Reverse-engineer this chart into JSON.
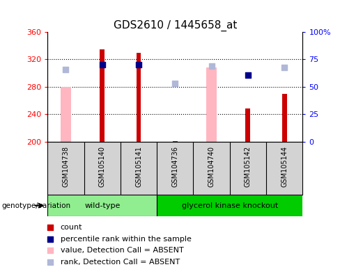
{
  "title": "GDS2610 / 1445658_at",
  "samples": [
    "GSM104738",
    "GSM105140",
    "GSM105141",
    "GSM104736",
    "GSM104740",
    "GSM105142",
    "GSM105144"
  ],
  "count_values": [
    null,
    335,
    330,
    201,
    null,
    248,
    270
  ],
  "count_color": "#cc0000",
  "pink_bar_values": [
    280,
    null,
    null,
    null,
    308,
    null,
    null
  ],
  "pink_bar_color": "#ffb6c1",
  "blue_square_values": [
    305,
    312,
    312,
    285,
    310,
    297,
    308
  ],
  "blue_square_is_dark": [
    false,
    true,
    true,
    false,
    false,
    true,
    false
  ],
  "dark_blue": "#00008b",
  "light_blue": "#b0b8d8",
  "ylim_left": [
    200,
    360
  ],
  "ylim_right": [
    0,
    100
  ],
  "yticks_left": [
    200,
    240,
    280,
    320,
    360
  ],
  "yticks_right": [
    0,
    25,
    50,
    75,
    100
  ],
  "ytick_labels_right": [
    "0",
    "25",
    "50",
    "75",
    "100%"
  ],
  "grid_lines": [
    240,
    280,
    320
  ],
  "plot_bg": "#ffffff",
  "sample_bg": "#d3d3d3",
  "wt_color": "#90ee90",
  "gk_color": "#00cc00",
  "genotype_label": "genotype/variation",
  "title_fontsize": 11,
  "tick_fontsize": 8,
  "sample_fontsize": 7,
  "legend_fontsize": 8,
  "red_bar_width": 0.13,
  "pink_bar_width": 0.28,
  "blue_sq_size": 35,
  "wt_samples": [
    0,
    1,
    2
  ],
  "gk_samples": [
    3,
    4,
    5,
    6
  ]
}
